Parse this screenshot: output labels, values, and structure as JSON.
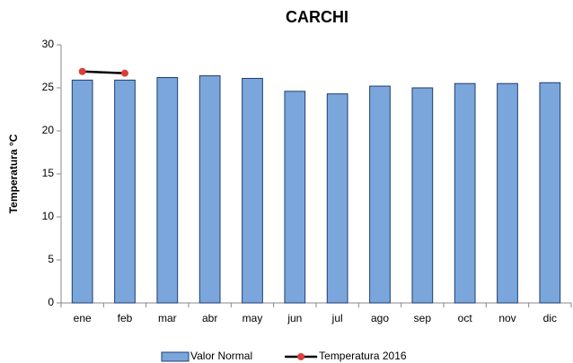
{
  "chart_data": {
    "type": "bar",
    "title": "CARCHI",
    "y_label": "Temperatura  °C",
    "categories": [
      "ene",
      "feb",
      "mar",
      "abr",
      "may",
      "jun",
      "jul",
      "ago",
      "sep",
      "oct",
      "nov",
      "dic"
    ],
    "series": [
      {
        "name": "Valor Normal",
        "type": "bar",
        "color": "#7ba6dc",
        "values": [
          25.9,
          25.9,
          26.2,
          26.4,
          26.1,
          24.6,
          24.3,
          25.2,
          25.0,
          25.5,
          25.5,
          25.6
        ]
      },
      {
        "name": "Temperatura 2016",
        "type": "line",
        "color": "#000000",
        "marker_color": "#d9403a",
        "values": [
          26.9,
          26.7,
          null,
          null,
          null,
          null,
          null,
          null,
          null,
          null,
          null,
          null
        ]
      }
    ],
    "ylim": [
      0,
      30
    ],
    "yticks": [
      0,
      5,
      10,
      15,
      20,
      25,
      30
    ],
    "grid": false,
    "legend": "bottom"
  }
}
